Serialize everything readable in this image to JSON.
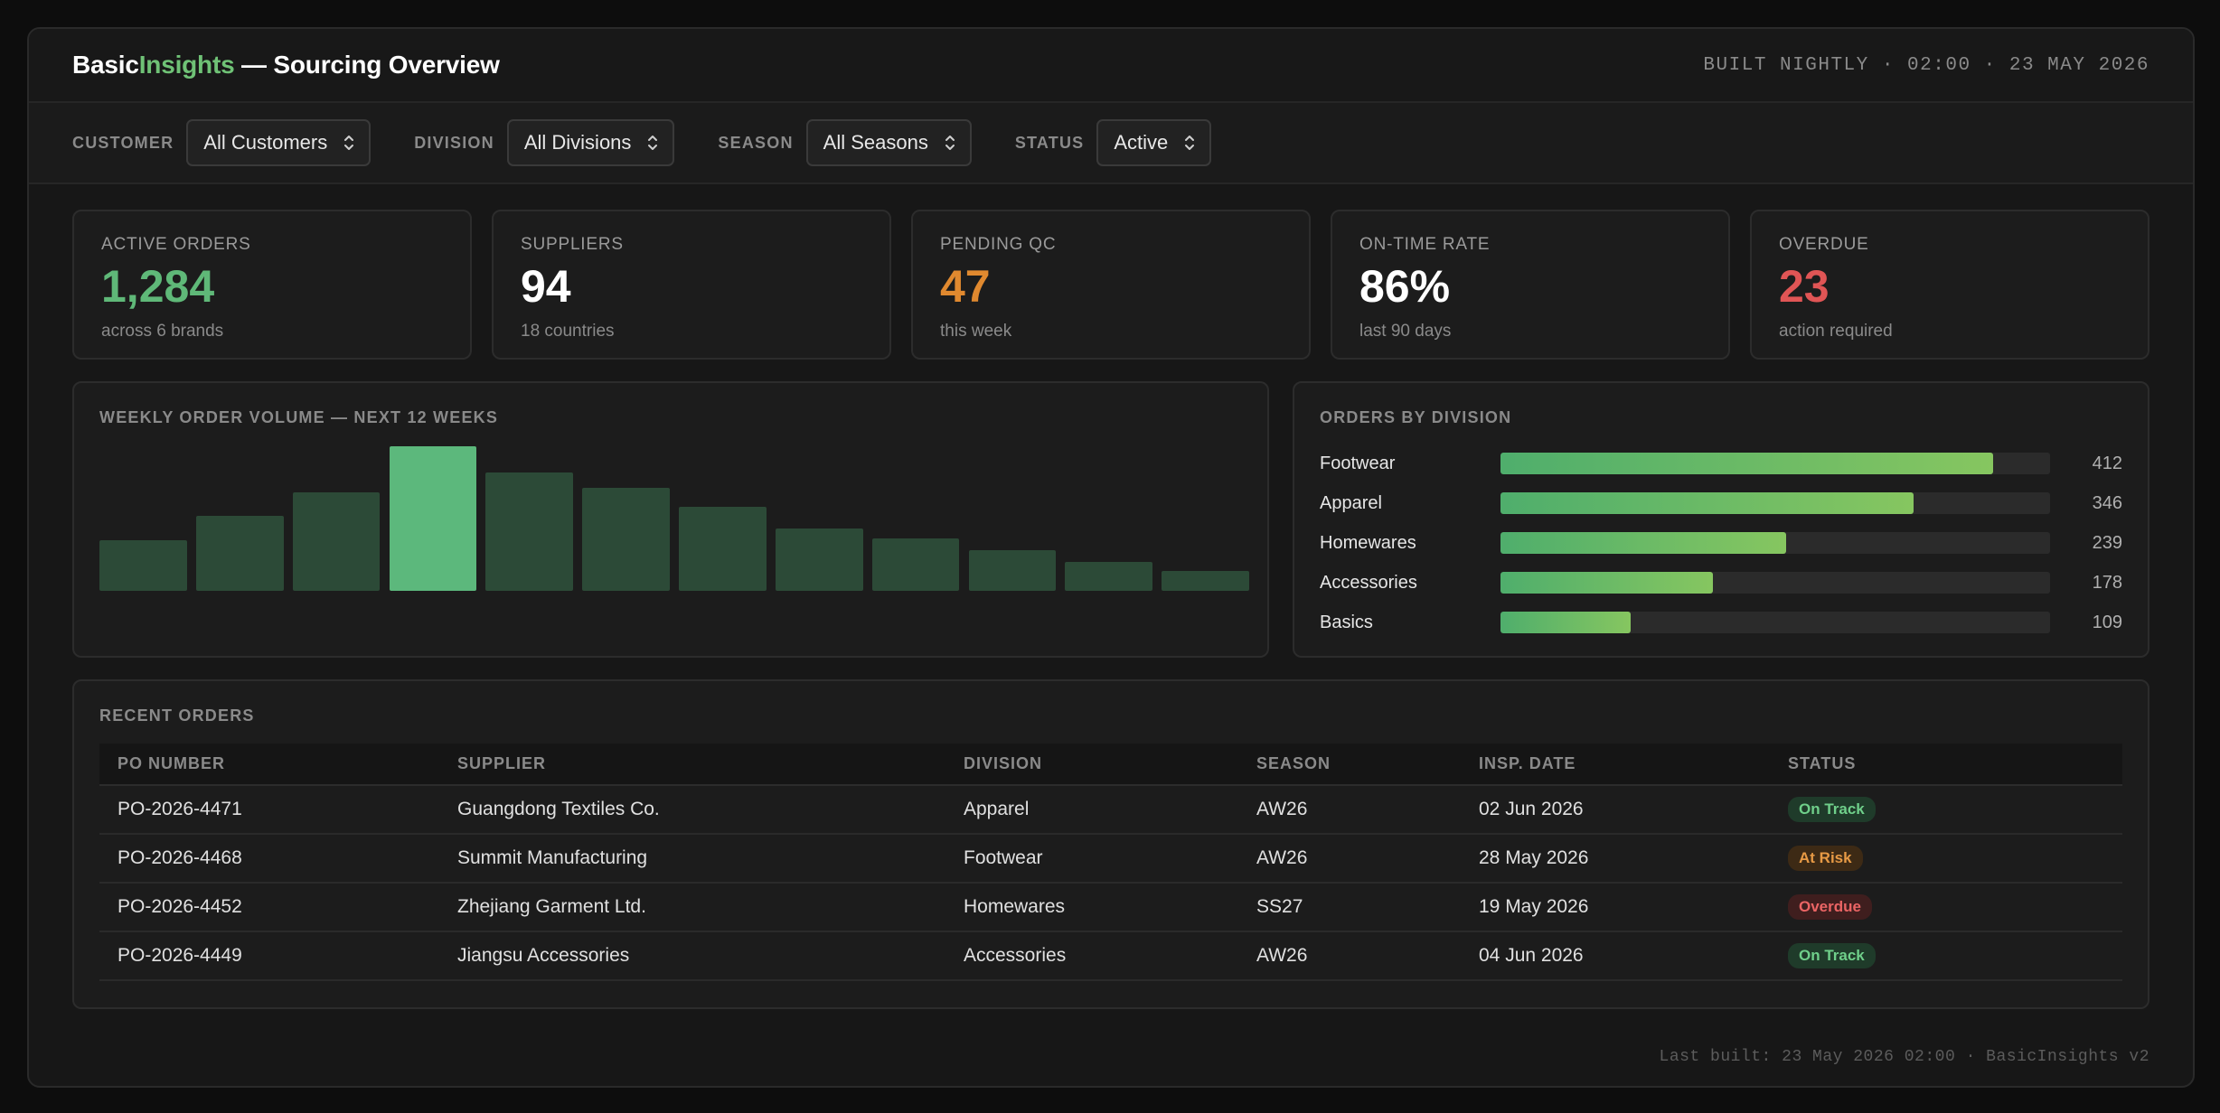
{
  "header": {
    "brand_basic": "Basic",
    "brand_insights": "Insights",
    "title_suffix": " — Sourcing Overview",
    "build_stamp": "BUILT NIGHTLY · 02:00 · 23 MAY 2026"
  },
  "filters": [
    {
      "label": "CUSTOMER",
      "value": "All Customers"
    },
    {
      "label": "DIVISION",
      "value": "All Divisions"
    },
    {
      "label": "SEASON",
      "value": "All Seasons"
    },
    {
      "label": "STATUS",
      "value": "Active"
    }
  ],
  "kpis": [
    {
      "label": "ACTIVE ORDERS",
      "value": "1,284",
      "sub": "across 6 brands",
      "color": "#5fb878"
    },
    {
      "label": "SUPPLIERS",
      "value": "94",
      "sub": "18 countries",
      "color": "#ffffff"
    },
    {
      "label": "PENDING QC",
      "value": "47",
      "sub": "this week",
      "color": "#e0892f"
    },
    {
      "label": "ON-TIME RATE",
      "value": "86%",
      "sub": "last 90 days",
      "color": "#ffffff"
    },
    {
      "label": "OVERDUE",
      "value": "23",
      "sub": "action required",
      "color": "#e05555"
    }
  ],
  "weekly": {
    "title": "WEEKLY ORDER VOLUME — NEXT 12 WEEKS"
  },
  "division": {
    "title": "ORDERS BY DIVISION",
    "max": 460,
    "rows": [
      {
        "label": "Footwear",
        "value": 412
      },
      {
        "label": "Apparel",
        "value": 346
      },
      {
        "label": "Homewares",
        "value": 239
      },
      {
        "label": "Accessories",
        "value": 178
      },
      {
        "label": "Basics",
        "value": 109
      }
    ]
  },
  "orders": {
    "title": "RECENT ORDERS",
    "columns": [
      "PO NUMBER",
      "SUPPLIER",
      "DIVISION",
      "SEASON",
      "INSP. DATE",
      "STATUS"
    ],
    "rows": [
      {
        "po": "PO-2026-4471",
        "supplier": "Guangdong Textiles Co.",
        "division": "Apparel",
        "season": "AW26",
        "date": "02 Jun 2026",
        "status": "On Track",
        "status_kind": "ontrack"
      },
      {
        "po": "PO-2026-4468",
        "supplier": "Summit Manufacturing",
        "division": "Footwear",
        "season": "AW26",
        "date": "28 May 2026",
        "status": "At Risk",
        "status_kind": "atrisk"
      },
      {
        "po": "PO-2026-4452",
        "supplier": "Zhejiang Garment Ltd.",
        "division": "Homewares",
        "season": "SS27",
        "date": "19 May 2026",
        "status": "Overdue",
        "status_kind": "overdue"
      },
      {
        "po": "PO-2026-4449",
        "supplier": "Jiangsu Accessories",
        "division": "Accessories",
        "season": "AW26",
        "date": "04 Jun 2026",
        "status": "On Track",
        "status_kind": "ontrack"
      }
    ]
  },
  "footer": "Last built: 23 May 2026 02:00 · BasicInsights v2",
  "chart_data": {
    "type": "bar",
    "title": "WEEKLY ORDER VOLUME — NEXT 12 WEEKS",
    "values": [
      35,
      52,
      68,
      100,
      82,
      71,
      58,
      43,
      36,
      28,
      20,
      14
    ],
    "highlight_index": 3,
    "ylim": [
      0,
      100
    ],
    "grid": false,
    "colors": {
      "bar": "#2c4a37",
      "highlight": "#5cb87c"
    }
  }
}
